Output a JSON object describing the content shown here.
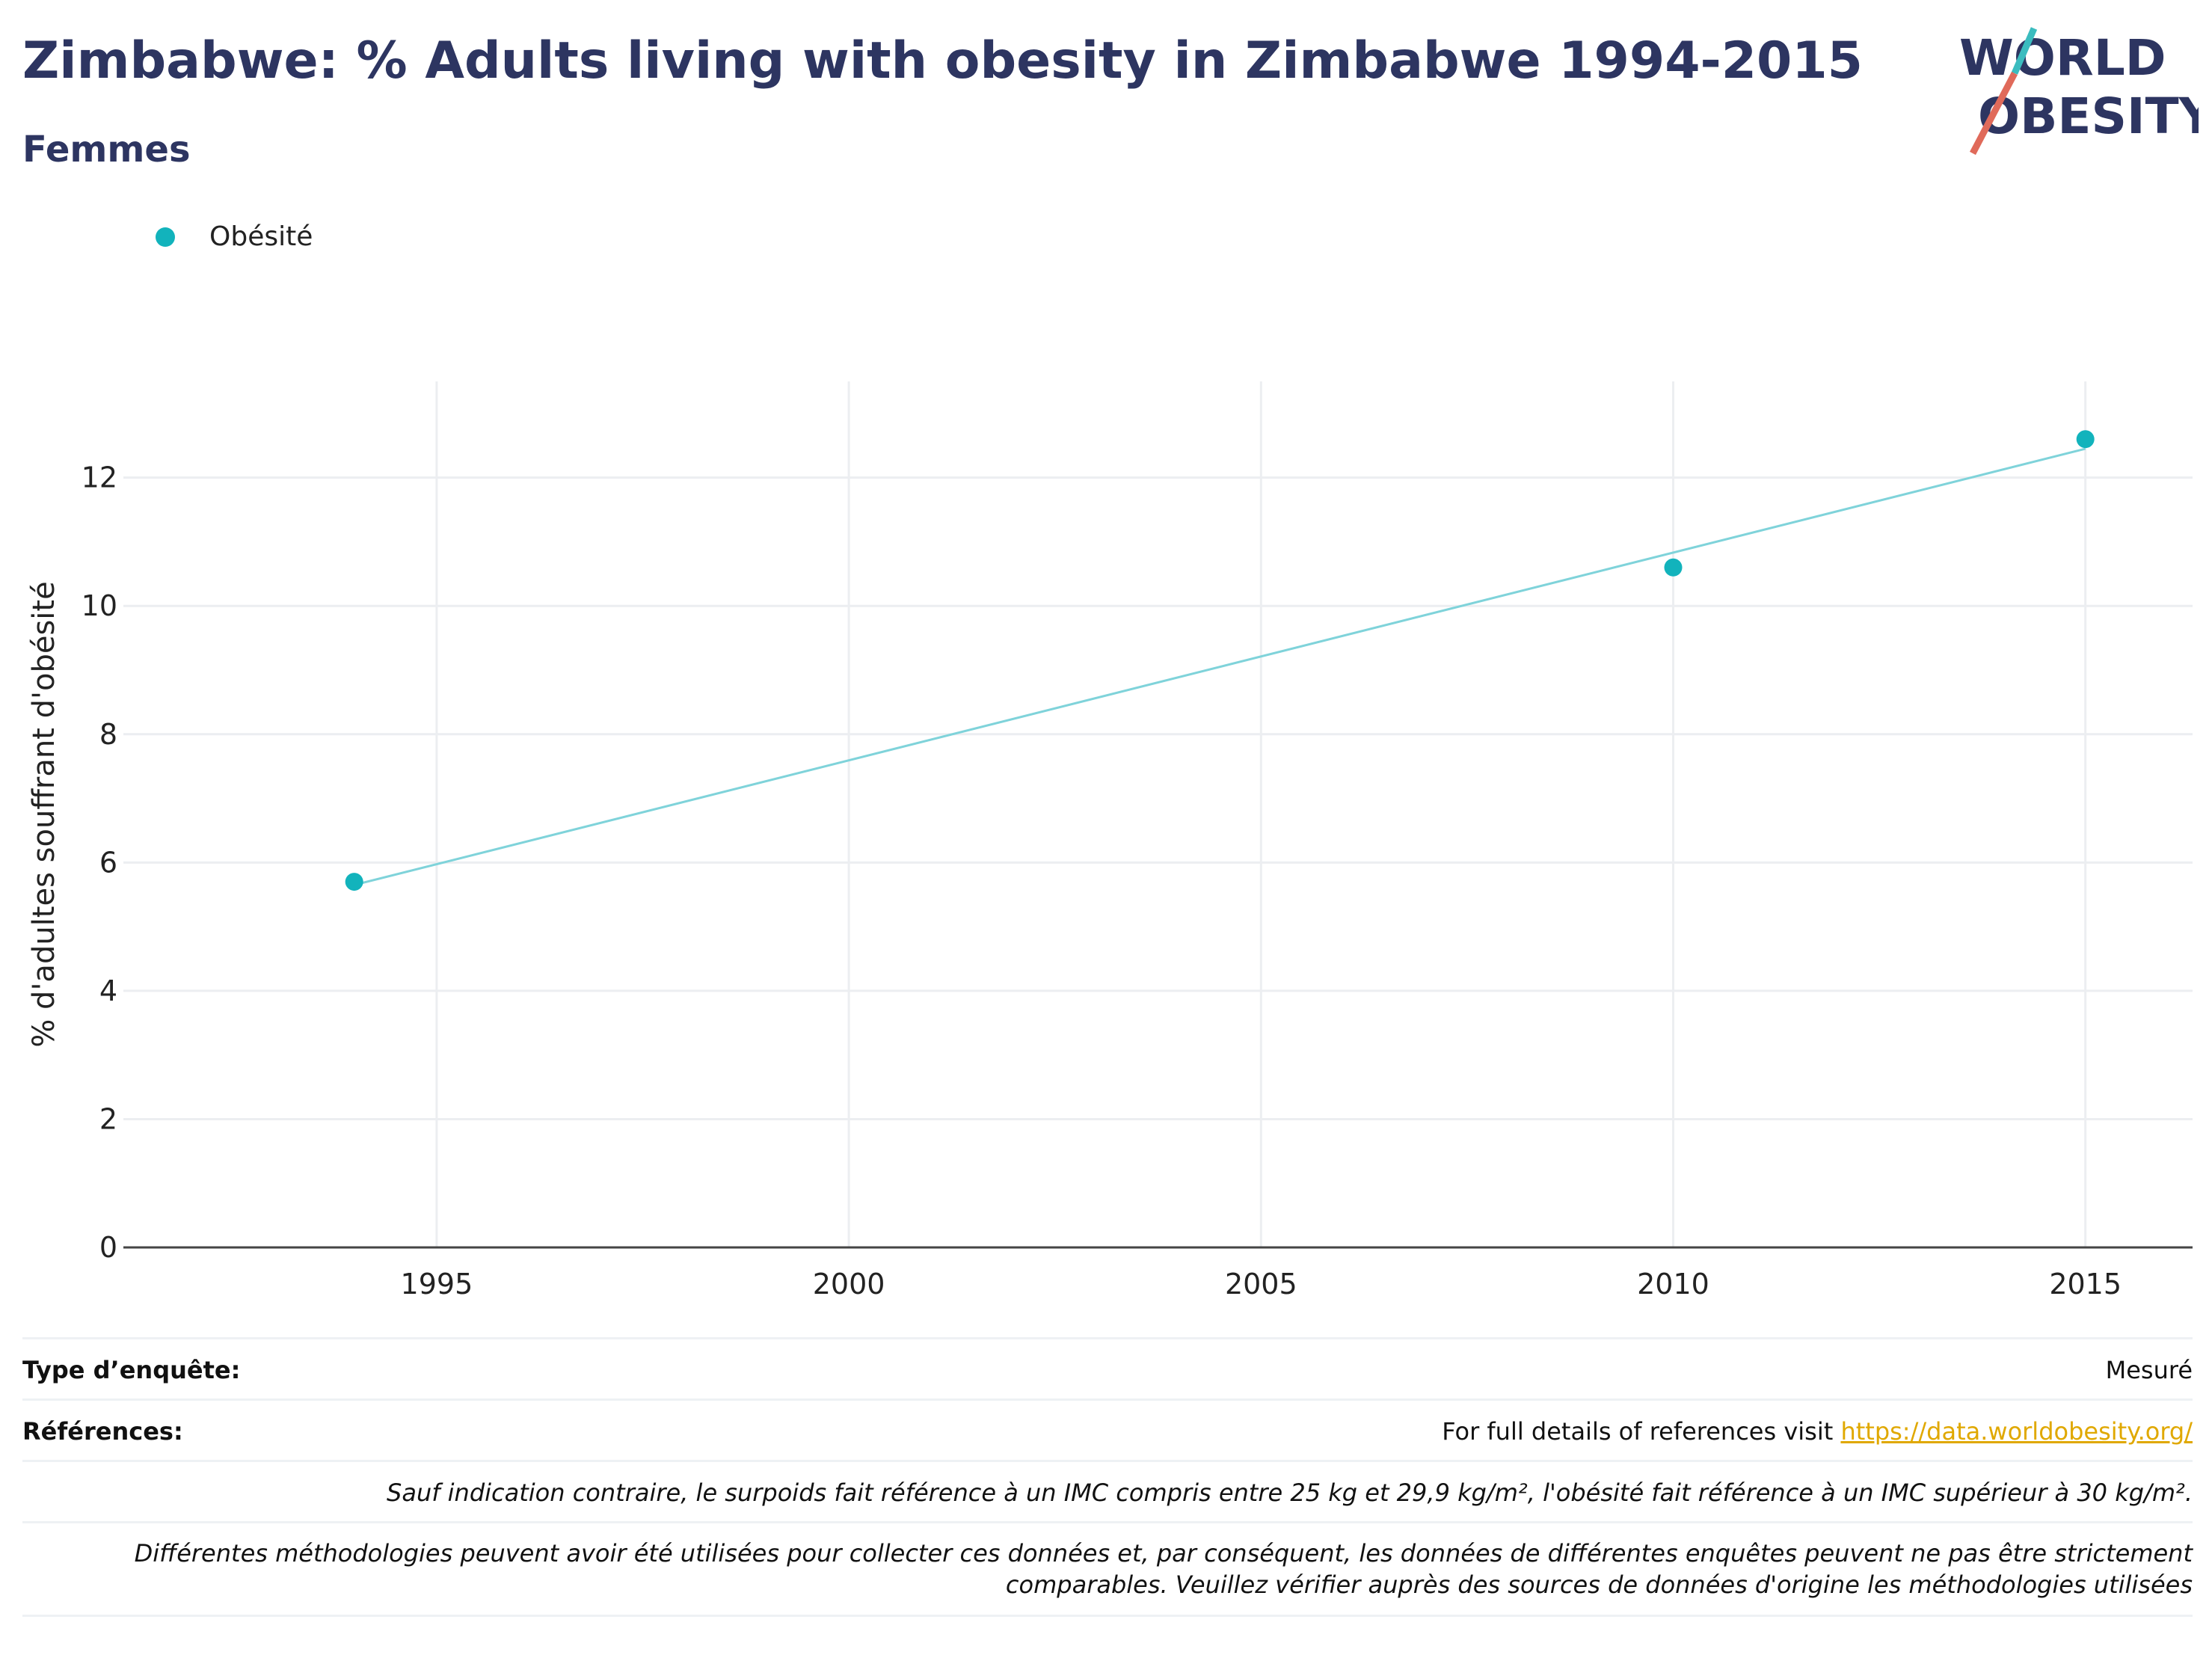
{
  "title": "Zimbabwe: % Adults living with obesity in Zimbabwe 1994-2015",
  "subtitle": "Femmes",
  "logo": {
    "line1": "WORLD",
    "line2": "OBESITY"
  },
  "colors": {
    "series": "#12b3bc",
    "trend": "#7fd3da",
    "title": "#2d3561",
    "link": "#e0a800"
  },
  "chart_data": {
    "type": "scatter",
    "title": "Zimbabwe: % Adults living with obesity in Zimbabwe 1994-2015",
    "subtitle": "Femmes",
    "xlabel": "",
    "ylabel": "% d'adultes souffrant d'obésité",
    "xlim": [
      1991.2,
      2016.3
    ],
    "ylim": [
      0,
      13.5
    ],
    "xticks": [
      1995,
      2000,
      2005,
      2010,
      2015
    ],
    "yticks": [
      0,
      2,
      4,
      6,
      8,
      10,
      12
    ],
    "grid": true,
    "legend_position": "top-left",
    "series": [
      {
        "name": "Obésité",
        "x": [
          1994,
          2010,
          2015
        ],
        "y": [
          5.7,
          10.6,
          12.6
        ]
      }
    ],
    "trendline": {
      "x": [
        1994,
        2015
      ],
      "y": [
        5.65,
        12.45
      ]
    }
  },
  "footer": {
    "survey_type_label": "Type d’enquête:",
    "survey_type_value": "Mesuré",
    "references_label": "Références:",
    "references_text": "For full details of references visit ",
    "references_link": "https://data.worldobesity.org/",
    "note1": "Sauf indication contraire, le surpoids fait référence à un IMC compris entre 25 kg et 29,9 kg/m², l'obésité fait référence à un IMC supérieur à 30 kg/m².",
    "note2_line1": "Différentes méthodologies peuvent avoir été utilisées pour collecter ces données et, par conséquent, les données de différentes enquêtes peuvent ne pas être strictement",
    "note2_line2": "comparables. Veuillez vérifier auprès des sources de données d'origine les méthodologies utilisées"
  }
}
